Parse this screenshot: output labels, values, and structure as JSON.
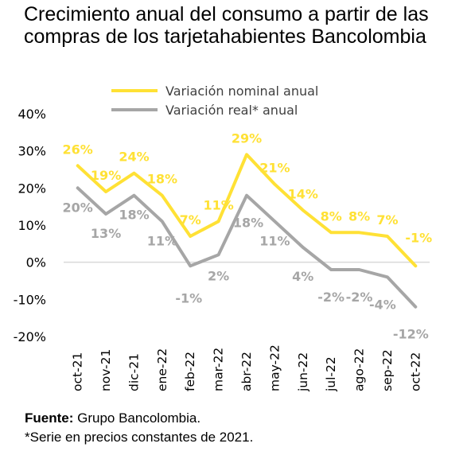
{
  "chart_data": {
    "type": "line",
    "title": "Crecimiento anual del consumo a partir de las compras de los tarjetahabientes Bancolombia",
    "categories": [
      "oct-21",
      "nov-21",
      "dic-21",
      "ene-22",
      "feb-22",
      "mar-22",
      "abr-22",
      "may-22",
      "jun-22",
      "jul-22",
      "ago-22",
      "sep-22",
      "oct-22"
    ],
    "yticks": [
      "-20%",
      "-10%",
      "0%",
      "10%",
      "20%",
      "30%",
      "40%"
    ],
    "ylim": [
      -20,
      40
    ],
    "series": [
      {
        "name": "Variación nominal anual",
        "color": "#FFE135",
        "values": [
          26,
          19,
          24,
          18,
          7,
          11,
          29,
          21,
          14,
          8,
          8,
          7,
          -1
        ],
        "labels": [
          "26%",
          "19%",
          "24%",
          "18%",
          "7%",
          "11%",
          "29%",
          "21%",
          "14%",
          "8%",
          "8%",
          "7%",
          "-1%"
        ]
      },
      {
        "name": "Variación real* anual",
        "color": "#A6A6A6",
        "values": [
          20,
          13,
          18,
          11,
          -1,
          2,
          18,
          11,
          4,
          -2,
          -2,
          -4,
          -12
        ],
        "labels": [
          "20%",
          "13%",
          "18%",
          "11%",
          "-1%",
          "2%",
          "18%",
          "11%",
          "4%",
          "-2%",
          "-2%",
          "-4%",
          "-12%"
        ]
      }
    ],
    "legend_position": "top-center",
    "grid": false
  },
  "footer": {
    "source_label": "Fuente:",
    "source_text": " Grupo Bancolombia.",
    "note": "*Serie en precios constantes de 2021."
  }
}
